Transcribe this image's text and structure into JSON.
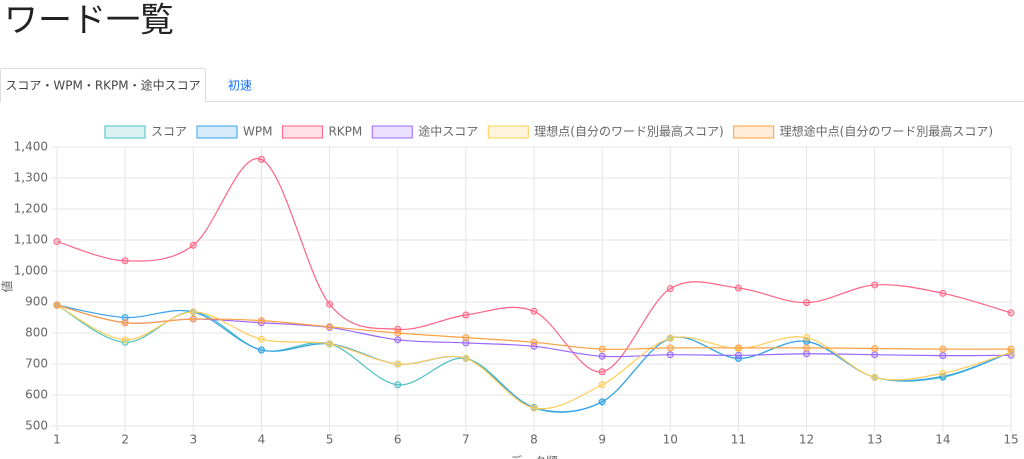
{
  "header": {
    "title": "ワード一覧"
  },
  "tabs": [
    {
      "label": "スコア・WPM・RKPM・途中スコア",
      "active": true
    },
    {
      "label": "初速",
      "active": false
    }
  ],
  "chart_data": {
    "type": "line",
    "categories": [
      "1",
      "2",
      "3",
      "4",
      "5",
      "6",
      "7",
      "8",
      "9",
      "10",
      "11",
      "12",
      "13",
      "14",
      "15"
    ],
    "x_label": "データ順",
    "y_label": "値",
    "ylim": [
      500,
      1400
    ],
    "yticks": [
      500,
      600,
      700,
      800,
      900,
      {
        "value": 1000,
        "label": "1,000"
      },
      {
        "value": 1100,
        "label": "1,100"
      },
      {
        "value": 1200,
        "label": "1,200"
      },
      {
        "value": 1300,
        "label": "1,300"
      },
      {
        "value": 1400,
        "label": "1,400"
      }
    ],
    "grid": true,
    "legend": "top",
    "series": [
      {
        "name": "スコア",
        "color": "#4bc0c0",
        "values": [
          890,
          770,
          868,
          745,
          765,
          633,
          718,
          558,
          578,
          783,
          718,
          773,
          657,
          657,
          738
        ]
      },
      {
        "name": "WPM",
        "color": "#36a2eb",
        "values": [
          890,
          850,
          868,
          745,
          765,
          700,
          718,
          560,
          578,
          783,
          718,
          773,
          657,
          660,
          738
        ]
      },
      {
        "name": "RKPM",
        "color": "#ff6384",
        "values": [
          1095,
          1033,
          1083,
          1360,
          893,
          812,
          858,
          870,
          675,
          943,
          945,
          898,
          955,
          928,
          865
        ]
      },
      {
        "name": "途中スコア",
        "color": "#9966ff",
        "values": [
          890,
          833,
          845,
          833,
          818,
          778,
          768,
          757,
          725,
          730,
          728,
          733,
          730,
          727,
          728
        ]
      },
      {
        "name": "理想点(自分のワード別最高スコア)",
        "color": "#ffcd56",
        "values": [
          890,
          778,
          868,
          780,
          765,
          700,
          718,
          558,
          633,
          783,
          750,
          785,
          657,
          670,
          738
        ]
      },
      {
        "name": "理想途中点(自分のワード別最高スコア)",
        "color": "#ff9f40",
        "values": [
          890,
          833,
          845,
          840,
          820,
          800,
          785,
          770,
          748,
          752,
          752,
          752,
          750,
          748,
          748
        ]
      }
    ]
  }
}
